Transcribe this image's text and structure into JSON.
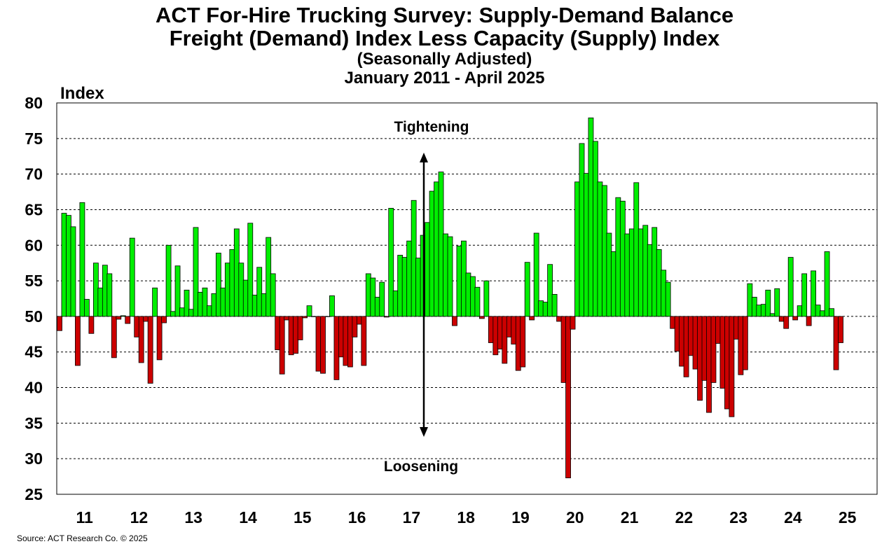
{
  "chart_data": {
    "type": "bar",
    "title": "ACT For-Hire Trucking Survey: Supply-Demand Balance",
    "subtitle": "Freight (Demand) Index Less Capacity (Supply) Index",
    "subtitle2": "(Seasonally Adjusted)",
    "period": "January 2011 - April 2025",
    "ylabel": "Index",
    "xlabel": "",
    "ylim": [
      25,
      80
    ],
    "yticks": [
      25,
      30,
      35,
      40,
      45,
      50,
      55,
      60,
      65,
      70,
      75,
      80
    ],
    "xticks": [
      "11",
      "12",
      "13",
      "14",
      "15",
      "16",
      "17",
      "18",
      "19",
      "20",
      "21",
      "22",
      "23",
      "24",
      "25"
    ],
    "baseline": 50,
    "grid": true,
    "colors": {
      "above": "#00ee00",
      "below": "#cc0000"
    },
    "annotations": {
      "top": "Tightening",
      "bottom": "Loosening"
    },
    "values": [
      48.0,
      64.5,
      64.2,
      62.6,
      43.1,
      66.0,
      52.4,
      47.6,
      57.5,
      54.0,
      57.2,
      56.0,
      44.2,
      49.6,
      50.1,
      49.0,
      61.0,
      47.1,
      43.5,
      49.3,
      40.6,
      54.0,
      43.9,
      49.1,
      60.0,
      50.7,
      57.1,
      51.2,
      53.7,
      51.0,
      62.5,
      53.4,
      54.0,
      51.5,
      53.2,
      58.9,
      54.0,
      57.5,
      59.4,
      62.3,
      57.5,
      55.1,
      63.1,
      53.0,
      56.9,
      53.2,
      61.1,
      56.0,
      45.3,
      41.9,
      49.5,
      44.6,
      44.8,
      46.7,
      49.8,
      51.5,
      50.0,
      42.3,
      42.0,
      50.0,
      52.9,
      41.1,
      44.3,
      43.1,
      42.9,
      47.1,
      48.9,
      43.1,
      56.0,
      55.4,
      52.7,
      54.8,
      49.9,
      65.2,
      53.6,
      58.6,
      58.3,
      60.6,
      66.3,
      58.2,
      61.4,
      63.2,
      67.6,
      68.9,
      70.3,
      61.6,
      61.2,
      48.7,
      59.9,
      60.6,
      56.1,
      55.6,
      54.1,
      49.7,
      55.0,
      46.3,
      44.6,
      45.4,
      43.4,
      47.1,
      46.1,
      42.4,
      42.9,
      57.6,
      49.5,
      61.7,
      52.2,
      52.0,
      57.3,
      53.1,
      49.3,
      40.7,
      27.3,
      48.2,
      68.9,
      74.3,
      70.1,
      77.9,
      74.6,
      68.9,
      68.4,
      61.7,
      59.1,
      66.7,
      66.2,
      61.6,
      62.3,
      68.8,
      62.3,
      62.8,
      60.1,
      62.5,
      59.4,
      56.5,
      54.8,
      48.3,
      45.1,
      43.0,
      41.5,
      44.5,
      42.6,
      38.2,
      41.0,
      36.5,
      40.7,
      46.2,
      39.9,
      37.0,
      35.9,
      46.8,
      41.8,
      42.5,
      54.6,
      52.7,
      51.6,
      51.7,
      53.7,
      50.4,
      53.9,
      49.3,
      48.3,
      58.3,
      49.5,
      51.5,
      56.0,
      48.7,
      56.4,
      51.6,
      50.8,
      59.1,
      51.1,
      42.5,
      46.3
    ]
  },
  "source": "Source: ACT Research Co. © 2025"
}
